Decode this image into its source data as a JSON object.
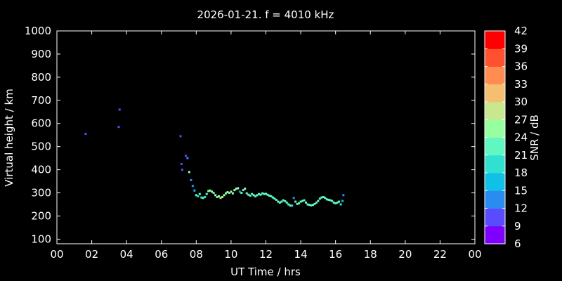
{
  "chart_data": {
    "type": "scatter",
    "title": "2026-01-21. f = 4010 kHz",
    "xlabel": "UT Time / hrs",
    "ylabel": "Virtual height / km",
    "xlim": [
      0,
      24
    ],
    "ylim": [
      80,
      1000
    ],
    "xticks": [
      "00",
      "02",
      "04",
      "06",
      "08",
      "10",
      "12",
      "14",
      "16",
      "18",
      "20",
      "22",
      "00"
    ],
    "yticks": [
      100,
      200,
      300,
      400,
      500,
      600,
      700,
      800,
      900,
      1000
    ],
    "colorbar": {
      "label": "SNR / dB",
      "range": [
        6,
        42
      ],
      "ticks": [
        6,
        9,
        12,
        15,
        18,
        21,
        24,
        27,
        30,
        33,
        36,
        39,
        42
      ],
      "colors": [
        "#8000ff",
        "#5a4bff",
        "#2a8cf0",
        "#10c0e6",
        "#30e0d0",
        "#60f8c0",
        "#98ffa0",
        "#c8e890",
        "#f4c070",
        "#ff8c50",
        "#ff5030",
        "#ff0000"
      ]
    },
    "points": [
      [
        1.65,
        555,
        9
      ],
      [
        3.55,
        585,
        9
      ],
      [
        3.6,
        660,
        9
      ],
      [
        7.1,
        545,
        9
      ],
      [
        7.15,
        425,
        11
      ],
      [
        7.2,
        400,
        11
      ],
      [
        7.4,
        460,
        11
      ],
      [
        7.5,
        450,
        12
      ],
      [
        7.6,
        390,
        25
      ],
      [
        7.7,
        355,
        12
      ],
      [
        7.8,
        330,
        12
      ],
      [
        7.9,
        310,
        15
      ],
      [
        8.0,
        290,
        21
      ],
      [
        8.1,
        285,
        19
      ],
      [
        8.2,
        295,
        21
      ],
      [
        8.3,
        280,
        19
      ],
      [
        8.4,
        278,
        21
      ],
      [
        8.5,
        282,
        20
      ],
      [
        8.6,
        295,
        22
      ],
      [
        8.7,
        308,
        24
      ],
      [
        8.8,
        310,
        26
      ],
      [
        8.9,
        305,
        24
      ],
      [
        9.0,
        300,
        22
      ],
      [
        9.1,
        290,
        24
      ],
      [
        9.2,
        282,
        22
      ],
      [
        9.3,
        285,
        24
      ],
      [
        9.4,
        278,
        30
      ],
      [
        9.5,
        282,
        24
      ],
      [
        9.6,
        290,
        26
      ],
      [
        9.7,
        298,
        24
      ],
      [
        9.8,
        303,
        24
      ],
      [
        9.9,
        300,
        22
      ],
      [
        10.0,
        305,
        25
      ],
      [
        10.1,
        298,
        24
      ],
      [
        10.2,
        312,
        24
      ],
      [
        10.3,
        318,
        24
      ],
      [
        10.4,
        320,
        24
      ],
      [
        10.5,
        305,
        12
      ],
      [
        10.6,
        300,
        22
      ],
      [
        10.7,
        312,
        22
      ],
      [
        10.8,
        318,
        24
      ],
      [
        10.9,
        298,
        22
      ],
      [
        11.0,
        292,
        22
      ],
      [
        11.1,
        288,
        22
      ],
      [
        11.2,
        295,
        21
      ],
      [
        11.3,
        290,
        22
      ],
      [
        11.4,
        285,
        22
      ],
      [
        11.5,
        290,
        21
      ],
      [
        11.6,
        295,
        22
      ],
      [
        11.7,
        292,
        22
      ],
      [
        11.8,
        298,
        21
      ],
      [
        11.9,
        295,
        22
      ],
      [
        12.0,
        296,
        21
      ],
      [
        12.1,
        292,
        22
      ],
      [
        12.2,
        288,
        21
      ],
      [
        12.3,
        285,
        21
      ],
      [
        12.4,
        280,
        22
      ],
      [
        12.5,
        275,
        21
      ],
      [
        12.6,
        270,
        22
      ],
      [
        12.7,
        262,
        21
      ],
      [
        12.8,
        258,
        22
      ],
      [
        12.9,
        262,
        21
      ],
      [
        13.0,
        268,
        22
      ],
      [
        13.1,
        264,
        21
      ],
      [
        13.2,
        258,
        21
      ],
      [
        13.3,
        250,
        22
      ],
      [
        13.4,
        245,
        21
      ],
      [
        13.5,
        245,
        19
      ],
      [
        13.6,
        278,
        12
      ],
      [
        13.7,
        262,
        22
      ],
      [
        13.8,
        252,
        21
      ],
      [
        13.9,
        255,
        22
      ],
      [
        14.0,
        262,
        21
      ],
      [
        14.1,
        265,
        22
      ],
      [
        14.2,
        268,
        21
      ],
      [
        14.3,
        258,
        22
      ],
      [
        14.4,
        250,
        21
      ],
      [
        14.5,
        248,
        22
      ],
      [
        14.6,
        246,
        21
      ],
      [
        14.7,
        248,
        22
      ],
      [
        14.8,
        252,
        21
      ],
      [
        14.9,
        258,
        22
      ],
      [
        15.0,
        265,
        21
      ],
      [
        15.1,
        275,
        22
      ],
      [
        15.2,
        280,
        21
      ],
      [
        15.3,
        282,
        21
      ],
      [
        15.4,
        278,
        22
      ],
      [
        15.5,
        272,
        21
      ],
      [
        15.6,
        270,
        22
      ],
      [
        15.7,
        268,
        21
      ],
      [
        15.8,
        265,
        22
      ],
      [
        15.9,
        258,
        21
      ],
      [
        16.0,
        255,
        22
      ],
      [
        16.1,
        258,
        21
      ],
      [
        16.2,
        262,
        22
      ],
      [
        16.3,
        250,
        18
      ],
      [
        16.4,
        265,
        15
      ],
      [
        16.45,
        290,
        12
      ]
    ]
  }
}
